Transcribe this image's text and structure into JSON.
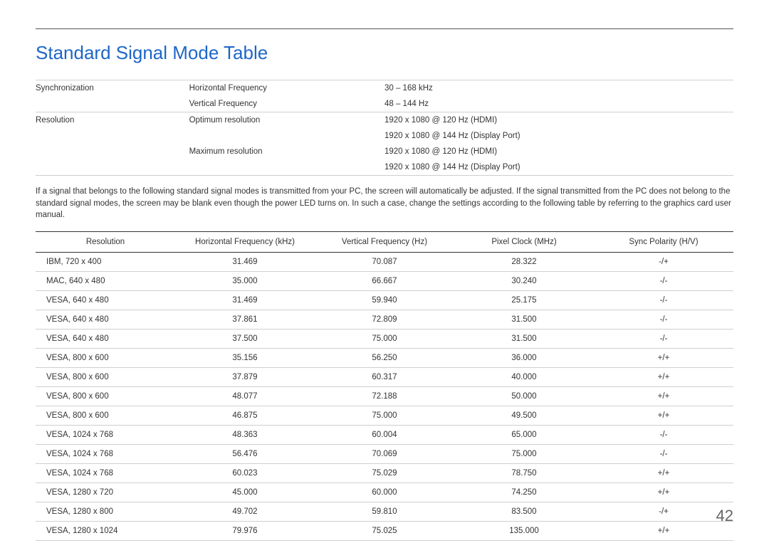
{
  "title": "Standard Signal Mode Table",
  "spec": {
    "sync_label": "Synchronization",
    "hfreq_label": "Horizontal Frequency",
    "hfreq_value": "30 – 168 kHz",
    "vfreq_label": "Vertical Frequency",
    "vfreq_value": "48 – 144 Hz",
    "res_label": "Resolution",
    "opt_label": "Optimum resolution",
    "opt_v1": "1920 x 1080 @ 120 Hz (HDMI)",
    "opt_v2": "1920 x 1080 @ 144 Hz (Display Port)",
    "max_label": "Maximum resolution",
    "max_v1": "1920 x 1080 @ 120 Hz (HDMI)",
    "max_v2": "1920 x 1080 @ 144 Hz (Display Port)"
  },
  "paragraph": "If a signal that belongs to the following standard signal modes is transmitted from your PC, the screen will automatically be adjusted. If the signal transmitted from the PC does not belong to the standard signal modes, the screen may be blank even though the power LED turns on. In such a case, change the settings according to the following table by referring to the graphics card user manual.",
  "table": {
    "columns": [
      "Resolution",
      "Horizontal Frequency (kHz)",
      "Vertical Frequency (Hz)",
      "Pixel Clock (MHz)",
      "Sync Polarity (H/V)"
    ],
    "rows": [
      [
        "IBM, 720 x 400",
        "31.469",
        "70.087",
        "28.322",
        "-/+"
      ],
      [
        "MAC, 640 x 480",
        "35.000",
        "66.667",
        "30.240",
        "-/-"
      ],
      [
        "VESA, 640 x 480",
        "31.469",
        "59.940",
        "25.175",
        "-/-"
      ],
      [
        "VESA, 640 x 480",
        "37.861",
        "72.809",
        "31.500",
        "-/-"
      ],
      [
        "VESA, 640 x 480",
        "37.500",
        "75.000",
        "31.500",
        "-/-"
      ],
      [
        "VESA, 800 x 600",
        "35.156",
        "56.250",
        "36.000",
        "+/+"
      ],
      [
        "VESA, 800 x 600",
        "37.879",
        "60.317",
        "40.000",
        "+/+"
      ],
      [
        "VESA, 800 x 600",
        "48.077",
        "72.188",
        "50.000",
        "+/+"
      ],
      [
        "VESA, 800 x 600",
        "46.875",
        "75.000",
        "49.500",
        "+/+"
      ],
      [
        "VESA, 1024 x 768",
        "48.363",
        "60.004",
        "65.000",
        "-/-"
      ],
      [
        "VESA, 1024 x 768",
        "56.476",
        "70.069",
        "75.000",
        "-/-"
      ],
      [
        "VESA, 1024 x 768",
        "60.023",
        "75.029",
        "78.750",
        "+/+"
      ],
      [
        "VESA, 1280 x 720",
        "45.000",
        "60.000",
        "74.250",
        "+/+"
      ],
      [
        "VESA, 1280 x 800",
        "49.702",
        "59.810",
        "83.500",
        "-/+"
      ],
      [
        "VESA, 1280 x 1024",
        "79.976",
        "75.025",
        "135.000",
        "+/+"
      ]
    ]
  },
  "page_number": "42",
  "colors": {
    "title": "#1e66c9",
    "text": "#333333",
    "border_light": "#cfcfcf",
    "border_dark": "#333333",
    "page_num": "#666666"
  }
}
